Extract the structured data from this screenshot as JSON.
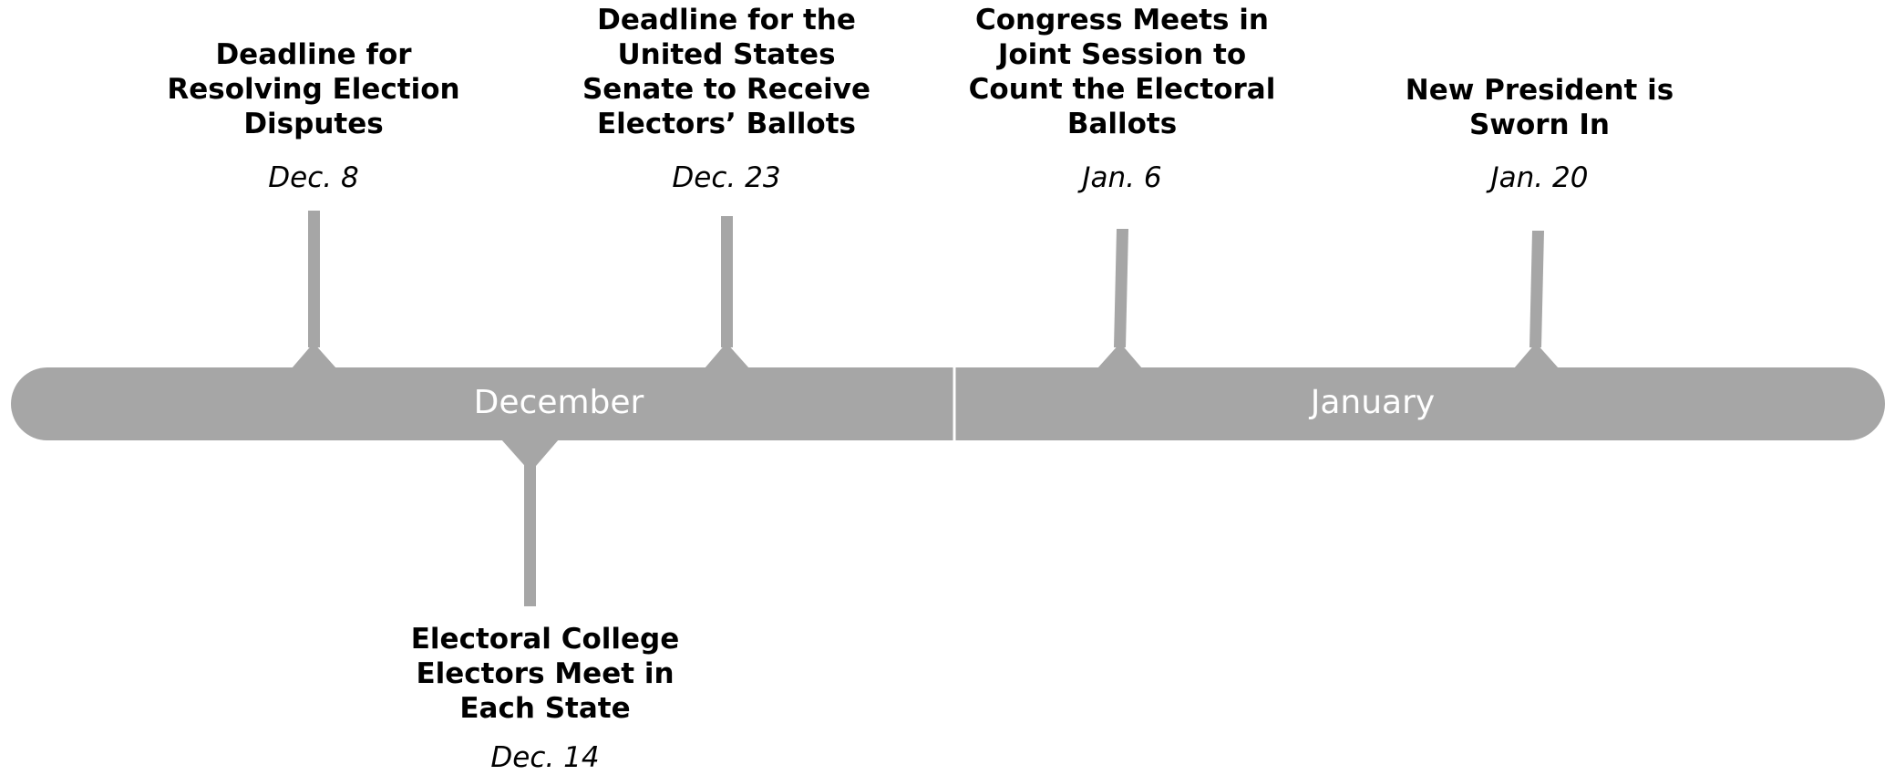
{
  "colors": {
    "bar": "#a6a6a6",
    "connector": "#a6a6a6",
    "divider": "#ffffff",
    "text": "#000000",
    "month_text": "#ffffff"
  },
  "months": [
    {
      "label": "December"
    },
    {
      "label": "January"
    }
  ],
  "events": [
    {
      "title": "Deadline for\nResolving Election\nDisputes",
      "date": "Dec. 8"
    },
    {
      "title": "Deadline for the\nUnited States\nSenate to Receive\nElectors’ Ballots",
      "date": "Dec. 23"
    },
    {
      "title": "Congress Meets in\nJoint Session to\nCount the Electoral\nBallots",
      "date": "Jan. 6"
    },
    {
      "title": "New President is\nSworn In",
      "date": "Jan. 20"
    },
    {
      "title": "Electoral College\nElectors Meet in\nEach State",
      "date": "Dec. 14"
    }
  ]
}
